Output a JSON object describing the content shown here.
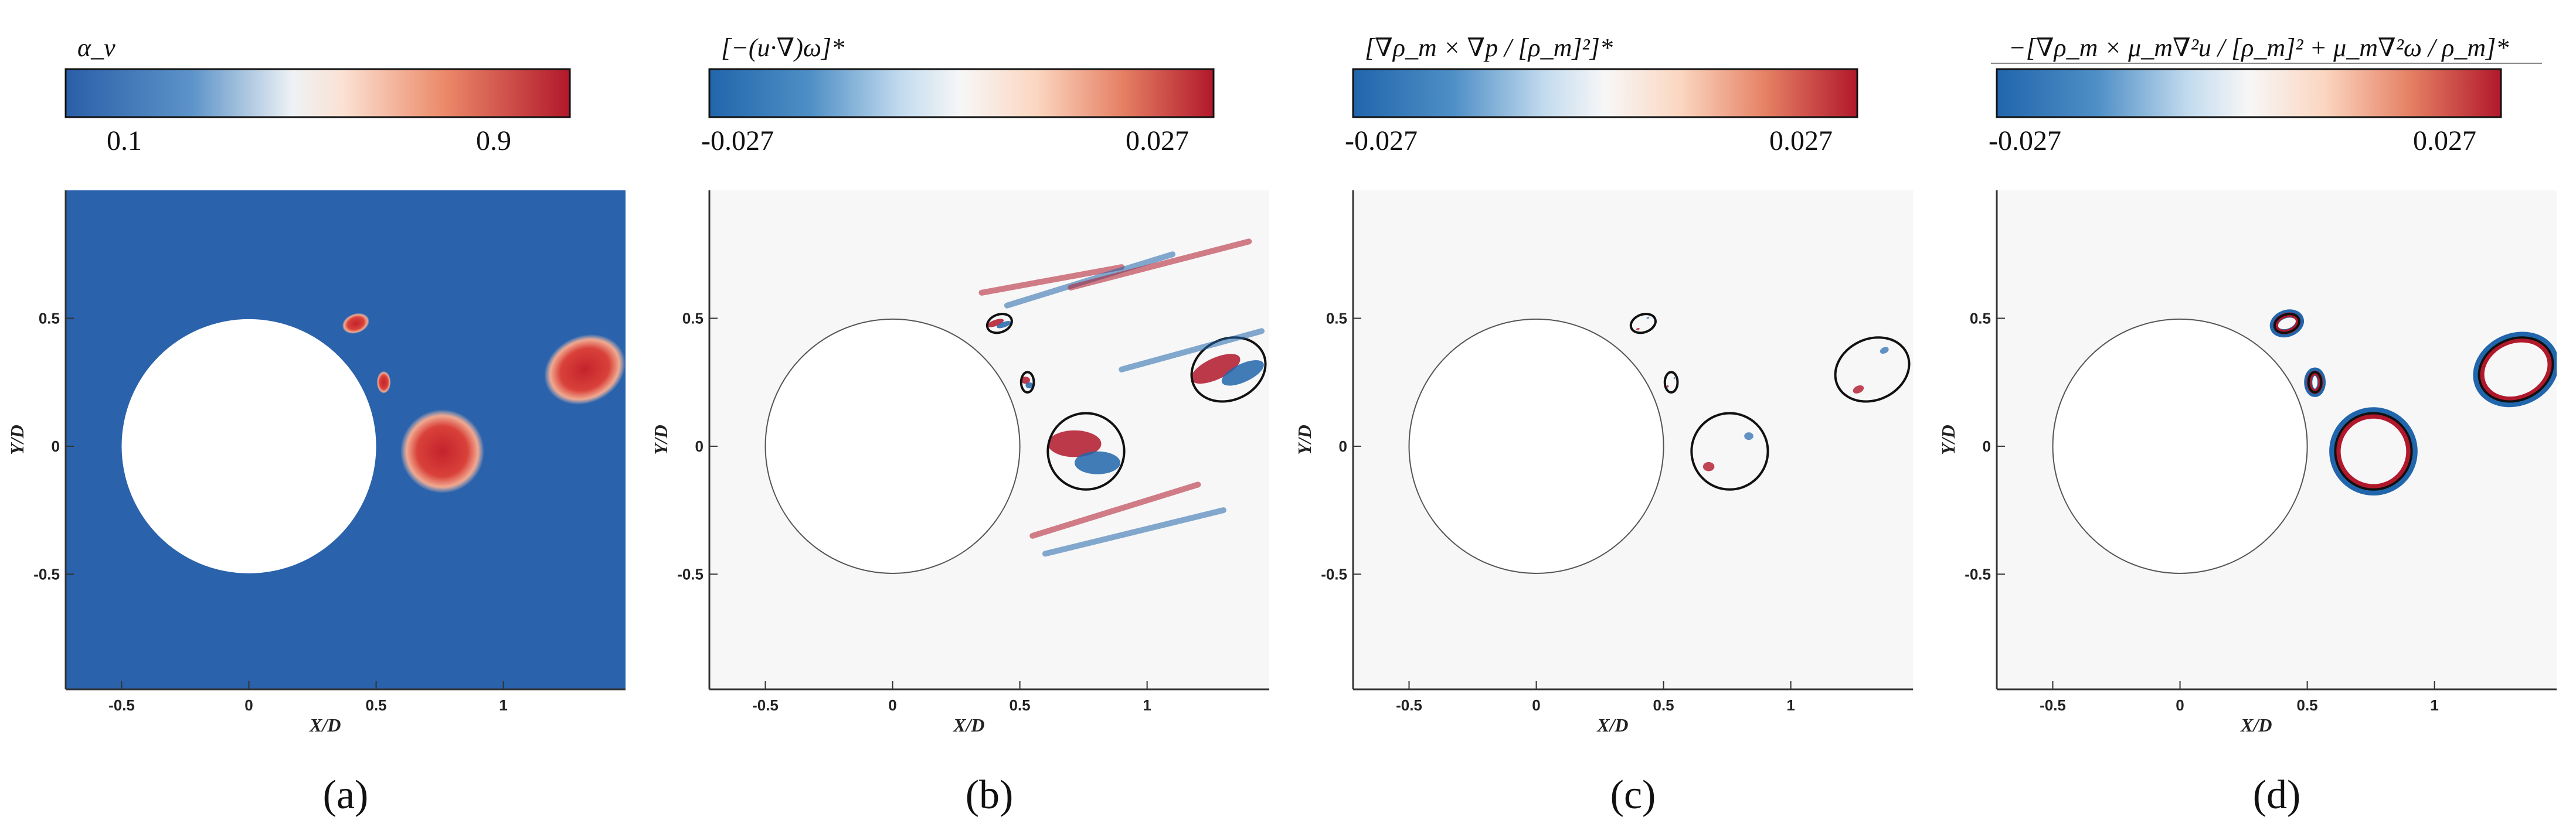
{
  "figure": {
    "panels": [
      {
        "id": "a",
        "label": "(a)",
        "field": "alpha",
        "colorbar": {
          "title": "α_v",
          "min_label": "0.1",
          "max_label": "0.9",
          "min": 0.1,
          "max": 0.9
        }
      },
      {
        "id": "b",
        "label": "(b)",
        "field": "source",
        "colorbar": {
          "title": "[−(u·∇)ω]*",
          "min_label": "-0.027",
          "max_label": "0.027",
          "min": -0.027,
          "max": 0.027
        }
      },
      {
        "id": "c",
        "label": "(c)",
        "field": "source",
        "colorbar": {
          "title": "[∇ρ_m × ∇p / [ρ_m]²]*",
          "min_label": "-0.027",
          "max_label": "0.027",
          "min": -0.027,
          "max": 0.027
        }
      },
      {
        "id": "d",
        "label": "(d)",
        "field": "source",
        "colorbar": {
          "title": "−[∇ρ_m × μ_m∇²u / [ρ_m]² + μ_m∇²ω / ρ_m]*",
          "min_label": "-0.027",
          "max_label": "0.027",
          "min": -0.027,
          "max": 0.027
        }
      }
    ],
    "colors": {
      "blue": "#2166ac",
      "white": "#f7f7f7",
      "red": "#b2182b",
      "cylinder": "#ffffff",
      "contour": "#111111"
    }
  },
  "chart_data": {
    "type": "heatmap",
    "xlabel": "X/D",
    "ylabel": "Y/D",
    "xlim": [
      -0.72,
      1.48
    ],
    "ylim": [
      -0.95,
      1.0
    ],
    "x_ticks": [
      -0.5,
      0,
      0.5,
      1
    ],
    "x_tick_labels": [
      "-0.5",
      "0",
      "0.5",
      "1"
    ],
    "y_ticks": [
      -0.5,
      0,
      0.5
    ],
    "y_tick_labels": [
      "-0.5",
      "0",
      "0.5"
    ],
    "cylinder": {
      "center": [
        0,
        0
      ],
      "diameter": 1.0
    },
    "cavities": [
      {
        "name": "bubble-1",
        "center": [
          0.42,
          0.48
        ],
        "rx": 0.05,
        "ry": 0.035,
        "rotation": -20
      },
      {
        "name": "bubble-2",
        "center": [
          0.53,
          0.25
        ],
        "rx": 0.025,
        "ry": 0.04,
        "rotation": 0
      },
      {
        "name": "main-cavity",
        "center": [
          0.76,
          -0.02
        ],
        "rx": 0.15,
        "ry": 0.15,
        "rotation": 0
      },
      {
        "name": "far-cavity",
        "center": [
          1.32,
          0.3
        ],
        "rx": 0.15,
        "ry": 0.12,
        "rotation": -25
      }
    ]
  }
}
